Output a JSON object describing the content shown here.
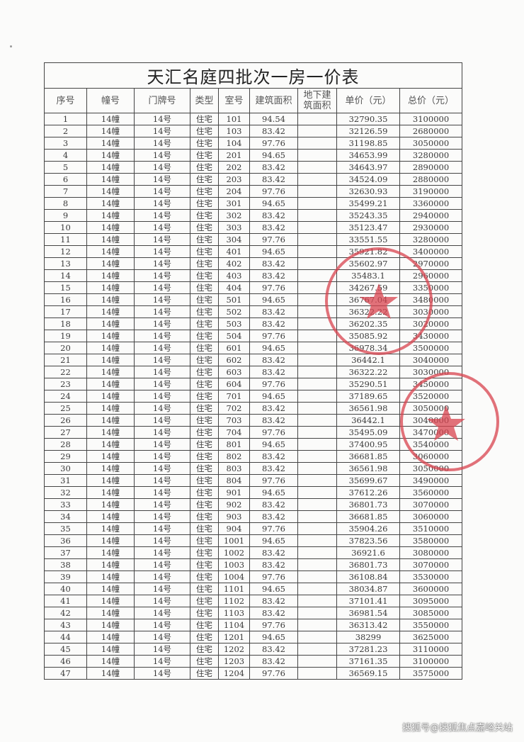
{
  "title": "天汇名庭四批次一房一价表",
  "headers": [
    "序号",
    "幢号",
    "门牌号",
    "类型",
    "室号",
    "建筑面积",
    "地下建筑面积",
    "单价（元）",
    "总价（元）"
  ],
  "stamp_color": "#d9434f",
  "watermark": "搜狐号@搜狐焦点嘉峪关站",
  "rows": [
    [
      "1",
      "14幢",
      "14号",
      "住宅",
      "101",
      "94.54",
      "",
      "32790.35",
      "3100000"
    ],
    [
      "2",
      "14幢",
      "14号",
      "住宅",
      "103",
      "83.42",
      "",
      "32126.59",
      "2680000"
    ],
    [
      "3",
      "14幢",
      "14号",
      "住宅",
      "104",
      "97.76",
      "",
      "31198.85",
      "3050000"
    ],
    [
      "4",
      "14幢",
      "14号",
      "住宅",
      "201",
      "94.65",
      "",
      "34653.99",
      "3280000"
    ],
    [
      "5",
      "14幢",
      "14号",
      "住宅",
      "202",
      "83.42",
      "",
      "34643.97",
      "2890000"
    ],
    [
      "6",
      "14幢",
      "14号",
      "住宅",
      "203",
      "83.42",
      "",
      "34524.09",
      "2880000"
    ],
    [
      "7",
      "14幢",
      "14号",
      "住宅",
      "204",
      "97.76",
      "",
      "32630.93",
      "3190000"
    ],
    [
      "8",
      "14幢",
      "14号",
      "住宅",
      "301",
      "94.65",
      "",
      "35499.21",
      "3360000"
    ],
    [
      "9",
      "14幢",
      "14号",
      "住宅",
      "302",
      "83.42",
      "",
      "35243.35",
      "2940000"
    ],
    [
      "10",
      "14幢",
      "14号",
      "住宅",
      "303",
      "83.42",
      "",
      "35123.47",
      "2930000"
    ],
    [
      "11",
      "14幢",
      "14号",
      "住宅",
      "304",
      "97.76",
      "",
      "33551.55",
      "3280000"
    ],
    [
      "12",
      "14幢",
      "14号",
      "住宅",
      "401",
      "94.65",
      "",
      "35921.82",
      "3400000"
    ],
    [
      "13",
      "14幢",
      "14号",
      "住宅",
      "402",
      "83.42",
      "",
      "35602.97",
      "2970000"
    ],
    [
      "14",
      "14幢",
      "14号",
      "住宅",
      "403",
      "83.42",
      "",
      "35483.1",
      "2960000"
    ],
    [
      "15",
      "14幢",
      "14号",
      "住宅",
      "404",
      "97.76",
      "",
      "34267.59",
      "3350000"
    ],
    [
      "16",
      "14幢",
      "14号",
      "住宅",
      "501",
      "94.65",
      "",
      "36767.04",
      "3480000"
    ],
    [
      "17",
      "14幢",
      "14号",
      "住宅",
      "502",
      "83.42",
      "",
      "36322.22",
      "3030000"
    ],
    [
      "18",
      "14幢",
      "14号",
      "住宅",
      "503",
      "83.42",
      "",
      "36202.35",
      "3020000"
    ],
    [
      "19",
      "14幢",
      "14号",
      "住宅",
      "504",
      "97.76",
      "",
      "35085.92",
      "3430000"
    ],
    [
      "20",
      "14幢",
      "14号",
      "住宅",
      "601",
      "94.65",
      "",
      "36978.34",
      "3500000"
    ],
    [
      "21",
      "14幢",
      "14号",
      "住宅",
      "602",
      "83.42",
      "",
      "36442.1",
      "3040000"
    ],
    [
      "22",
      "14幢",
      "14号",
      "住宅",
      "603",
      "83.42",
      "",
      "36322.22",
      "3030000"
    ],
    [
      "23",
      "14幢",
      "14号",
      "住宅",
      "604",
      "97.76",
      "",
      "35290.51",
      "3450000"
    ],
    [
      "24",
      "14幢",
      "14号",
      "住宅",
      "701",
      "94.65",
      "",
      "37189.65",
      "3520000"
    ],
    [
      "25",
      "14幢",
      "14号",
      "住宅",
      "702",
      "83.42",
      "",
      "36561.98",
      "3050000"
    ],
    [
      "26",
      "14幢",
      "14号",
      "住宅",
      "703",
      "83.42",
      "",
      "36442.1",
      "3040000"
    ],
    [
      "27",
      "14幢",
      "14号",
      "住宅",
      "704",
      "97.76",
      "",
      "35495.09",
      "3470000"
    ],
    [
      "28",
      "14幢",
      "14号",
      "住宅",
      "801",
      "94.65",
      "",
      "37400.95",
      "3540000"
    ],
    [
      "29",
      "14幢",
      "14号",
      "住宅",
      "802",
      "83.42",
      "",
      "36681.85",
      "3060000"
    ],
    [
      "30",
      "14幢",
      "14号",
      "住宅",
      "803",
      "83.42",
      "",
      "36561.98",
      "3050000"
    ],
    [
      "31",
      "14幢",
      "14号",
      "住宅",
      "804",
      "97.76",
      "",
      "35699.67",
      "3490000"
    ],
    [
      "32",
      "14幢",
      "14号",
      "住宅",
      "901",
      "94.65",
      "",
      "37612.26",
      "3560000"
    ],
    [
      "33",
      "14幢",
      "14号",
      "住宅",
      "902",
      "83.42",
      "",
      "36801.73",
      "3070000"
    ],
    [
      "34",
      "14幢",
      "14号",
      "住宅",
      "903",
      "83.42",
      "",
      "36681.85",
      "3060000"
    ],
    [
      "35",
      "14幢",
      "14号",
      "住宅",
      "904",
      "97.76",
      "",
      "35904.26",
      "3510000"
    ],
    [
      "36",
      "14幢",
      "14号",
      "住宅",
      "1001",
      "94.65",
      "",
      "37823.56",
      "3580000"
    ],
    [
      "37",
      "14幢",
      "14号",
      "住宅",
      "1002",
      "83.42",
      "",
      "36921.6",
      "3080000"
    ],
    [
      "38",
      "14幢",
      "14号",
      "住宅",
      "1003",
      "83.42",
      "",
      "36801.73",
      "3070000"
    ],
    [
      "39",
      "14幢",
      "14号",
      "住宅",
      "1004",
      "97.76",
      "",
      "36108.84",
      "3530000"
    ],
    [
      "40",
      "14幢",
      "14号",
      "住宅",
      "1101",
      "94.65",
      "",
      "38034.87",
      "3600000"
    ],
    [
      "41",
      "14幢",
      "14号",
      "住宅",
      "1102",
      "83.42",
      "",
      "37101.41",
      "3095000"
    ],
    [
      "42",
      "14幢",
      "14号",
      "住宅",
      "1103",
      "83.42",
      "",
      "36981.54",
      "3085000"
    ],
    [
      "43",
      "14幢",
      "14号",
      "住宅",
      "1104",
      "97.76",
      "",
      "36313.42",
      "3550000"
    ],
    [
      "44",
      "14幢",
      "14号",
      "住宅",
      "1201",
      "94.65",
      "",
      "38299",
      "3625000"
    ],
    [
      "45",
      "14幢",
      "14号",
      "住宅",
      "1202",
      "83.42",
      "",
      "37281.23",
      "3110000"
    ],
    [
      "46",
      "14幢",
      "14号",
      "住宅",
      "1203",
      "83.42",
      "",
      "37161.35",
      "3100000"
    ],
    [
      "47",
      "14幢",
      "14号",
      "住宅",
      "1204",
      "97.76",
      "",
      "36569.15",
      "3575000"
    ]
  ]
}
